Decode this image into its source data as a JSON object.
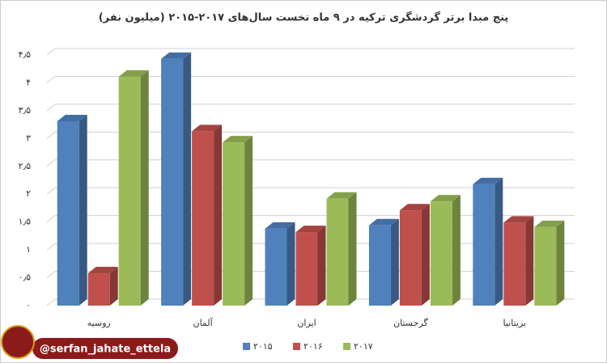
{
  "chart_data": {
    "type": "bar3d",
    "title": "پنج مبدا برتر گردشگری ترکیه در ۹ ماه نخست سال‌های ۲۰۱۷-۲۰۱۵ (میلیون نفر)",
    "categories": [
      "روسیه",
      "آلمان",
      "ایران",
      "گرجستان",
      "بریتانیا"
    ],
    "series": [
      {
        "name": "۲۰۱۵",
        "color": "#4f81bd",
        "values": [
          3.31,
          4.43,
          1.38,
          1.44,
          2.18
        ]
      },
      {
        "name": "۲۰۱۶",
        "color": "#c0504d",
        "values": [
          0.58,
          3.13,
          1.32,
          1.71,
          1.49
        ]
      },
      {
        "name": "۲۰۱۷",
        "color": "#9bbb59",
        "values": [
          4.11,
          2.93,
          1.92,
          1.87,
          1.41
        ]
      }
    ],
    "ylim": [
      0,
      4.5
    ],
    "yticks": [
      {
        "value": 0,
        "label": "۰"
      },
      {
        "value": 0.5,
        "label": "۰٫۵"
      },
      {
        "value": 1,
        "label": "۱"
      },
      {
        "value": 1.5,
        "label": "۱٫۵"
      },
      {
        "value": 2,
        "label": "۲"
      },
      {
        "value": 2.5,
        "label": "۲٫۵"
      },
      {
        "value": 3,
        "label": "۳"
      },
      {
        "value": 3.5,
        "label": "۳٫۵"
      },
      {
        "value": 4,
        "label": "۴"
      },
      {
        "value": 4.5,
        "label": "۴٫۵"
      }
    ],
    "grid": true,
    "watermark": "@serfan_jahate_ettela"
  }
}
